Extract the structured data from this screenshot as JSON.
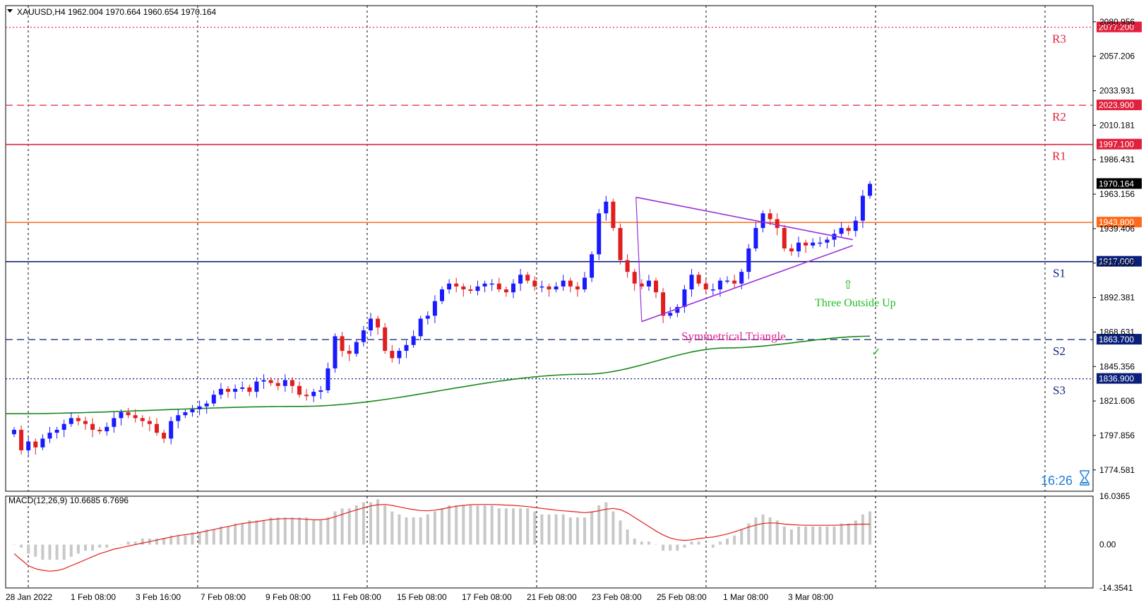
{
  "header": {
    "symbol_info": "XAUUSD,H4  1962.004 1970.664 1960.654 1970.164",
    "arrow_icon": "triangle-down-icon"
  },
  "clock": "16:26",
  "colors": {
    "bull": "#1a1aff",
    "bear": "#e01e1e",
    "resistance": "#e0203c",
    "support": "#0a1f7a",
    "pivot_orange": "#ff6a1a",
    "ma": "#1a8a1a",
    "triangle": "#9b30d9",
    "pattern_text": "#e02090",
    "outside_up": "#22bb22",
    "macd_hist": "#c8c8c8",
    "macd_signal": "#e01e1e",
    "clock": "#1e7fd8"
  },
  "chart_data": {
    "type": "candlestick",
    "symbol": "XAUUSD",
    "timeframe": "H4",
    "ylim": [
      1760,
      2092
    ],
    "y_ticks": [
      "2080.956",
      "2057.206",
      "2033.931",
      "2010.181",
      "1986.431",
      "1963.156",
      "1939.406",
      "1915.656",
      "1892.381",
      "1868.631",
      "1845.356",
      "1821.606",
      "1797.856",
      "1774.581"
    ],
    "x_ticks": [
      "28 Jan 2022",
      "1 Feb 08:00",
      "3 Feb 16:00",
      "7 Feb 08:00",
      "9 Feb 08:00",
      "11 Feb 08:00",
      "15 Feb 08:00",
      "17 Feb 08:00",
      "21 Feb 08:00",
      "23 Feb 08:00",
      "25 Feb 08:00",
      "1 Mar 08:00",
      "3 Mar 08:00"
    ],
    "levels": [
      {
        "name": "R3",
        "value": 2077.2,
        "label": "2077.200",
        "style": "dotted",
        "kind": "resistance"
      },
      {
        "name": "R2",
        "value": 2023.9,
        "label": "2023.900",
        "style": "dashed",
        "kind": "resistance"
      },
      {
        "name": "R1",
        "value": 1997.1,
        "label": "1997.100",
        "style": "solid",
        "kind": "resistance"
      },
      {
        "name": "",
        "value": 1943.8,
        "label": "1943.800",
        "style": "solid",
        "kind": "pivot"
      },
      {
        "name": "S1",
        "value": 1917.0,
        "label": "1917.000",
        "style": "solid",
        "kind": "support"
      },
      {
        "name": "S2",
        "value": 1863.7,
        "label": "1863.700",
        "style": "dashed",
        "kind": "support"
      },
      {
        "name": "S3",
        "value": 1836.9,
        "label": "1836.900",
        "style": "dotted",
        "kind": "support"
      }
    ],
    "current_price": {
      "value": 1970.164,
      "label": "1970.164"
    },
    "closes": [
      1802,
      1788,
      1794,
      1790,
      1796,
      1800,
      1802,
      1806,
      1810,
      1808,
      1806,
      1802,
      1801,
      1804,
      1810,
      1814,
      1812,
      1810,
      1808,
      1806,
      1800,
      1796,
      1808,
      1812,
      1814,
      1816,
      1818,
      1820,
      1826,
      1830,
      1828,
      1830,
      1831,
      1828,
      1835,
      1836,
      1834,
      1832,
      1836,
      1832,
      1826,
      1825,
      1828,
      1829,
      1844,
      1866,
      1856,
      1854,
      1862,
      1870,
      1878,
      1872,
      1856,
      1851,
      1856,
      1860,
      1866,
      1878,
      1880,
      1890,
      1898,
      1902,
      1900,
      1898,
      1897,
      1900,
      1902,
      1902,
      1898,
      1896,
      1902,
      1908,
      1904,
      1900,
      1900,
      1898,
      1900,
      1904,
      1900,
      1898,
      1906,
      1922,
      1950,
      1958,
      1940,
      1918,
      1910,
      1902,
      1900,
      1904,
      1896,
      1880,
      1882,
      1886,
      1898,
      1908,
      1902,
      1898,
      1898,
      1904,
      1904,
      1902,
      1910,
      1926,
      1940,
      1950,
      1946,
      1940,
      1926,
      1924,
      1930,
      1928,
      1930,
      1930,
      1932,
      1936,
      1940,
      1938,
      1945,
      1962,
      1970.164
    ],
    "ma_200": [
      {
        "i": 0,
        "v": 1813
      },
      {
        "i": 40,
        "v": 1818
      },
      {
        "i": 80,
        "v": 1840
      },
      {
        "i": 100,
        "v": 1858
      },
      {
        "i": 120,
        "v": 1866
      }
    ],
    "macd": {
      "label": "MACD(12,26,9) 10.6685 6.7696",
      "ylim": [
        -14.3541,
        16.0365
      ],
      "y_ticks": [
        "16.0365",
        "0.00",
        "-14.3541"
      ],
      "histogram": [
        0,
        -1,
        -3,
        -4,
        -5,
        -5,
        -5,
        -5,
        -4,
        -3,
        -2,
        -2,
        -1,
        -1,
        0,
        0,
        1,
        1,
        2,
        2,
        2,
        2,
        3,
        3,
        3,
        4,
        4,
        5,
        5,
        6,
        6,
        7,
        7,
        8,
        8,
        8,
        9,
        9,
        9,
        9,
        9,
        9,
        8,
        8,
        9,
        11,
        12,
        12,
        13,
        14,
        14,
        15,
        13,
        11,
        10,
        9,
        9,
        9,
        10,
        11,
        12,
        13,
        13,
        13,
        13,
        13,
        13,
        13,
        12,
        12,
        12,
        12,
        12,
        11,
        10,
        10,
        10,
        10,
        9,
        9,
        9,
        11,
        13,
        14,
        11,
        8,
        5,
        2,
        1,
        1,
        0,
        -2,
        -2,
        -2,
        -1,
        1,
        1,
        0,
        -1,
        1,
        2,
        3,
        5,
        7,
        9,
        10,
        9,
        8,
        6,
        5,
        6,
        6,
        6,
        6,
        6,
        6,
        7,
        7,
        8,
        10,
        11
      ],
      "signal": [
        -3,
        -5,
        -7,
        -8,
        -8.5,
        -8.8,
        -8.6,
        -8,
        -7,
        -6,
        -5,
        -4,
        -3,
        -2.3,
        -1.5,
        -1,
        -0.5,
        0,
        0.5,
        1,
        1.5,
        2,
        2.5,
        3,
        3.3,
        3.6,
        4,
        4.5,
        5,
        5.5,
        6,
        6.5,
        7,
        7.3,
        7.6,
        8,
        8.3,
        8.5,
        8.6,
        8.6,
        8.5,
        8.4,
        8.2,
        8.2,
        8.5,
        9.2,
        10,
        10.8,
        11.5,
        12.2,
        12.8,
        13.2,
        13.3,
        13,
        12.5,
        12,
        11.6,
        11.3,
        11.2,
        11.4,
        11.8,
        12.3,
        12.7,
        13,
        13.2,
        13.3,
        13.3,
        13.3,
        13.2,
        13.1,
        13,
        12.8,
        12.6,
        12.3,
        12,
        11.7,
        11.4,
        11.2,
        11,
        10.8,
        10.6,
        10.8,
        11.2,
        11.7,
        12,
        11.6,
        10.5,
        9,
        7.5,
        6,
        4.5,
        3.2,
        2.2,
        1.6,
        1.4,
        1.6,
        2,
        2.3,
        2.5,
        3,
        3.5,
        4.2,
        5,
        5.8,
        6.5,
        7,
        7.2,
        7.1,
        6.8,
        6.6,
        6.5,
        6.4,
        6.4,
        6.4,
        6.4,
        6.4,
        6.5,
        6.6,
        6.7,
        6.7696,
        6.7696
      ]
    }
  },
  "annotations": {
    "triangle_label": "Symmetrical Triangle",
    "pattern_label": "Three Outside Up",
    "up_arrow": "⇧",
    "check_mark": "✓"
  }
}
